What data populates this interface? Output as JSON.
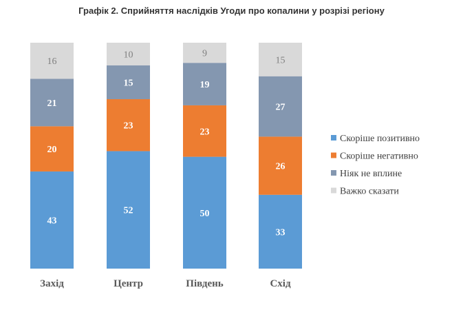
{
  "chart_data": {
    "type": "bar",
    "stacked": true,
    "normalized_percent": true,
    "title": "Графік 2. Сприйняття наслідків Угоди про копалини у розрізі регіону",
    "categories": [
      "Захід",
      "Центр",
      "Південь",
      "Схід"
    ],
    "series": [
      {
        "name": "Скоріше позитивно",
        "color": "#5B9BD5",
        "values": [
          43,
          52,
          50,
          33
        ]
      },
      {
        "name": "Скоріше негативно",
        "color": "#ED7D31",
        "values": [
          20,
          23,
          23,
          26
        ]
      },
      {
        "name": "Ніяк не вплине",
        "color": "#8497B0",
        "values": [
          21,
          15,
          19,
          27
        ]
      },
      {
        "name": "Важко сказати",
        "color": "#D9D9D9",
        "values": [
          16,
          10,
          9,
          15
        ]
      }
    ],
    "legend_position": "right",
    "grid": false
  }
}
